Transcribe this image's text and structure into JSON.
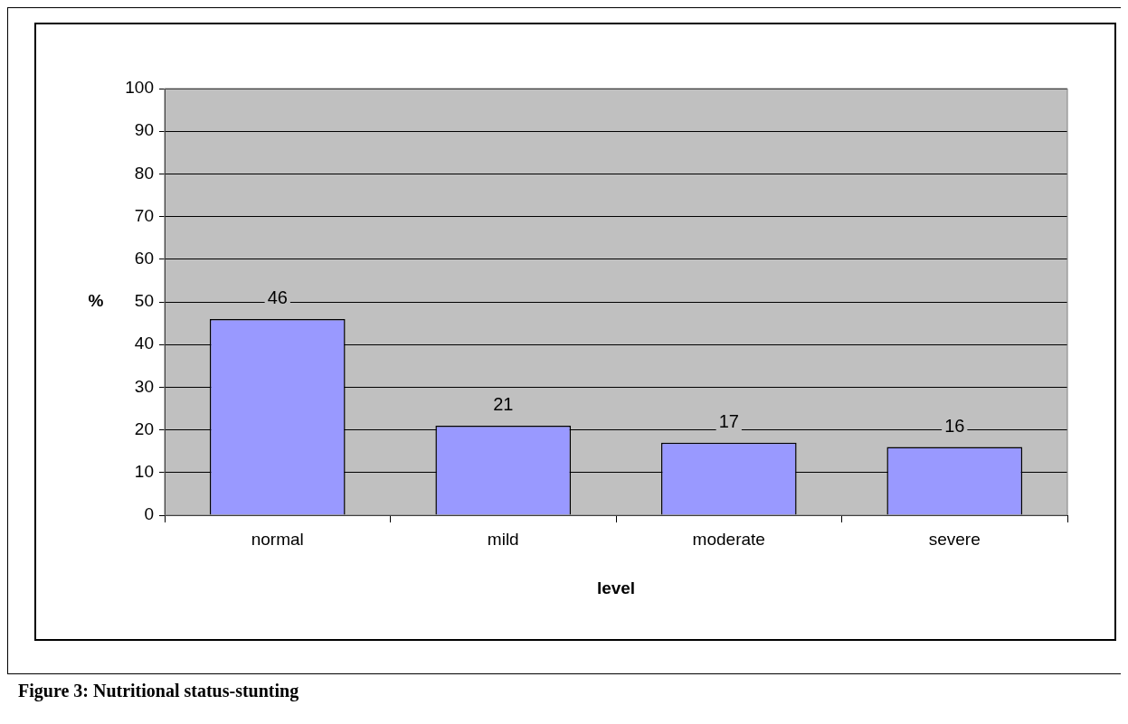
{
  "chart_data": {
    "type": "bar",
    "xlabel": "level",
    "ylabel": "%",
    "categories": [
      "normal",
      "mild",
      "moderate",
      "severe"
    ],
    "values": [
      46,
      21,
      17,
      16
    ],
    "color": "#9999ff",
    "ylim": [
      0,
      100
    ],
    "yticks": [
      0,
      10,
      20,
      30,
      40,
      50,
      60,
      70,
      80,
      90,
      100
    ],
    "grid": "y",
    "legend": false,
    "data_labels": true,
    "annotations": [
      "Figure 3: Nutritional status-stunting"
    ]
  }
}
